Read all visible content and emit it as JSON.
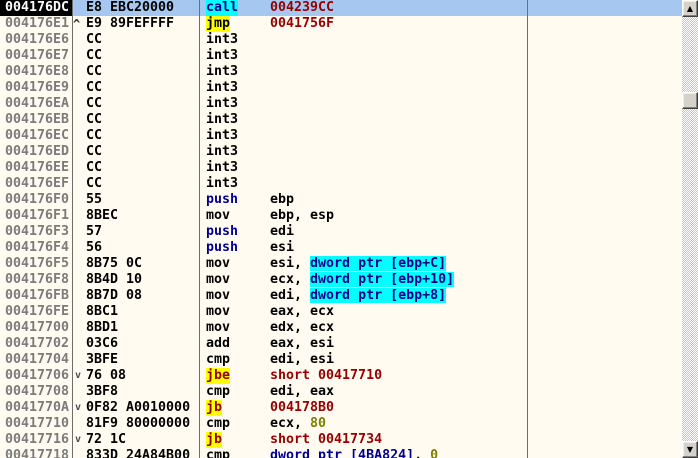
{
  "window": {
    "title": "disassembly-pane"
  },
  "colors": {
    "background": "#FFFBF0",
    "selection_blue": "#A6C8F0",
    "selected_address_bg": "#000000",
    "address_gray": "#7B7B7B",
    "highlight_cyan": "#00FFFF",
    "highlight_yellow": "#FFFF00",
    "jump_target_maroon": "#970000",
    "constant_olive": "#7E7E00",
    "memory_navy": "#000090",
    "separator_gray": "#6E6E6E"
  },
  "scrollbar": {
    "up_icon": "▲",
    "down_icon": "▼"
  },
  "disassembly": {
    "selected_address": "004176DC",
    "rows": [
      {
        "address": "004176DC",
        "arrow": "",
        "bytes": "E8 EBC20000",
        "mnemonic": "call",
        "mn": "call",
        "selected": true,
        "ops": [
          {
            "t": "004239CC",
            "s": "addr"
          }
        ]
      },
      {
        "address": "004176E1",
        "arrow": "up",
        "bytes": "E9 89FEFFFF",
        "mnemonic": "jmp",
        "mn": "jmp",
        "ops": [
          {
            "t": "0041756F",
            "s": "addr"
          }
        ]
      },
      {
        "address": "004176E6",
        "arrow": "",
        "bytes": "CC",
        "mnemonic": "int3",
        "mn": "plain",
        "ops": []
      },
      {
        "address": "004176E7",
        "arrow": "",
        "bytes": "CC",
        "mnemonic": "int3",
        "mn": "plain",
        "ops": []
      },
      {
        "address": "004176E8",
        "arrow": "",
        "bytes": "CC",
        "mnemonic": "int3",
        "mn": "plain",
        "ops": []
      },
      {
        "address": "004176E9",
        "arrow": "",
        "bytes": "CC",
        "mnemonic": "int3",
        "mn": "plain",
        "ops": []
      },
      {
        "address": "004176EA",
        "arrow": "",
        "bytes": "CC",
        "mnemonic": "int3",
        "mn": "plain",
        "ops": []
      },
      {
        "address": "004176EB",
        "arrow": "",
        "bytes": "CC",
        "mnemonic": "int3",
        "mn": "plain",
        "ops": []
      },
      {
        "address": "004176EC",
        "arrow": "",
        "bytes": "CC",
        "mnemonic": "int3",
        "mn": "plain",
        "ops": []
      },
      {
        "address": "004176ED",
        "arrow": "",
        "bytes": "CC",
        "mnemonic": "int3",
        "mn": "plain",
        "ops": []
      },
      {
        "address": "004176EE",
        "arrow": "",
        "bytes": "CC",
        "mnemonic": "int3",
        "mn": "plain",
        "ops": []
      },
      {
        "address": "004176EF",
        "arrow": "",
        "bytes": "CC",
        "mnemonic": "int3",
        "mn": "plain",
        "ops": []
      },
      {
        "address": "004176F0",
        "arrow": "",
        "bytes": "55",
        "mnemonic": "push",
        "mn": "push",
        "ops": [
          {
            "t": "ebp",
            "s": "plain"
          }
        ]
      },
      {
        "address": "004176F1",
        "arrow": "",
        "bytes": "8BEC",
        "mnemonic": "mov",
        "mn": "plain",
        "ops": [
          {
            "t": "ebp, esp",
            "s": "plain"
          }
        ]
      },
      {
        "address": "004176F3",
        "arrow": "",
        "bytes": "57",
        "mnemonic": "push",
        "mn": "push",
        "ops": [
          {
            "t": "edi",
            "s": "plain"
          }
        ]
      },
      {
        "address": "004176F4",
        "arrow": "",
        "bytes": "56",
        "mnemonic": "push",
        "mn": "push",
        "ops": [
          {
            "t": "esi",
            "s": "plain"
          }
        ]
      },
      {
        "address": "004176F5",
        "arrow": "",
        "bytes": "8B75 0C",
        "mnemonic": "mov",
        "mn": "plain",
        "ops": [
          {
            "t": "esi, ",
            "s": "plain"
          },
          {
            "t": "dword ptr [ebp+C]",
            "s": "memhl"
          }
        ]
      },
      {
        "address": "004176F8",
        "arrow": "",
        "bytes": "8B4D 10",
        "mnemonic": "mov",
        "mn": "plain",
        "ops": [
          {
            "t": "ecx, ",
            "s": "plain"
          },
          {
            "t": "dword ptr [ebp+10]",
            "s": "memhl"
          }
        ]
      },
      {
        "address": "004176FB",
        "arrow": "",
        "bytes": "8B7D 08",
        "mnemonic": "mov",
        "mn": "plain",
        "ops": [
          {
            "t": "edi, ",
            "s": "plain"
          },
          {
            "t": "dword ptr [ebp+8]",
            "s": "memhl"
          }
        ]
      },
      {
        "address": "004176FE",
        "arrow": "",
        "bytes": "8BC1",
        "mnemonic": "mov",
        "mn": "plain",
        "ops": [
          {
            "t": "eax, ecx",
            "s": "plain"
          }
        ]
      },
      {
        "address": "00417700",
        "arrow": "",
        "bytes": "8BD1",
        "mnemonic": "mov",
        "mn": "plain",
        "ops": [
          {
            "t": "edx, ecx",
            "s": "plain"
          }
        ]
      },
      {
        "address": "00417702",
        "arrow": "",
        "bytes": "03C6",
        "mnemonic": "add",
        "mn": "plain",
        "ops": [
          {
            "t": "eax, esi",
            "s": "plain"
          }
        ]
      },
      {
        "address": "00417704",
        "arrow": "",
        "bytes": "3BFE",
        "mnemonic": "cmp",
        "mn": "plain",
        "ops": [
          {
            "t": "edi, esi",
            "s": "plain"
          }
        ]
      },
      {
        "address": "00417706",
        "arrow": "down",
        "bytes": "76 08",
        "mnemonic": "jbe",
        "mn": "jcc",
        "ops": [
          {
            "t": "short 00417710",
            "s": "addr"
          }
        ]
      },
      {
        "address": "00417708",
        "arrow": "",
        "bytes": "3BF8",
        "mnemonic": "cmp",
        "mn": "plain",
        "ops": [
          {
            "t": "edi, eax",
            "s": "plain"
          }
        ]
      },
      {
        "address": "0041770A",
        "arrow": "down",
        "bytes": "0F82 A0010000",
        "mnemonic": "jb",
        "mn": "jcc",
        "ops": [
          {
            "t": "004178B0",
            "s": "addr"
          }
        ]
      },
      {
        "address": "00417710",
        "arrow": "",
        "bytes": "81F9 80000000",
        "mnemonic": "cmp",
        "mn": "plain",
        "ops": [
          {
            "t": "ecx, ",
            "s": "plain"
          },
          {
            "t": "80",
            "s": "imm"
          }
        ]
      },
      {
        "address": "00417716",
        "arrow": "down",
        "bytes": "72 1C",
        "mnemonic": "jb",
        "mn": "jcc",
        "ops": [
          {
            "t": "short 00417734",
            "s": "addr"
          }
        ]
      },
      {
        "address": "00417718",
        "arrow": "",
        "bytes": "833D 24A84B00",
        "mnemonic": "cmp",
        "mn": "plain",
        "ops": [
          {
            "t": "dword ptr [4BA824]",
            "s": "mem"
          },
          {
            "t": ", ",
            "s": "plain"
          },
          {
            "t": "0",
            "s": "imm"
          }
        ]
      }
    ]
  }
}
